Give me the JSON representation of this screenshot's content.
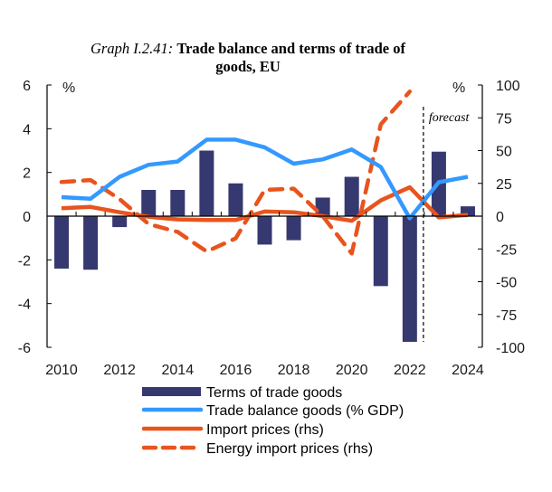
{
  "title": {
    "prefix": "Graph I.2.41:",
    "main_line1": "Trade balance and terms of trade of",
    "main_line2": "goods, EU"
  },
  "colors": {
    "terms_of_trade": "#363870",
    "trade_balance": "#3399FF",
    "import_prices": "#E8541E",
    "energy_import_prices": "#E8541E",
    "axis": "#000000"
  },
  "chart_data": {
    "type": "bar",
    "title": "Graph I.2.41: Trade balance and terms of trade of goods, EU",
    "categories": [
      2010,
      2011,
      2012,
      2013,
      2014,
      2015,
      2016,
      2017,
      2018,
      2019,
      2020,
      2021,
      2022,
      2023,
      2024
    ],
    "x_tick_labels": [
      "2010",
      "2012",
      "2014",
      "2016",
      "2018",
      "2020",
      "2022",
      "2024"
    ],
    "left_axis": {
      "label": "%",
      "ylim": [
        -6,
        6
      ],
      "ticks": [
        6,
        4,
        2,
        0,
        -2,
        -4,
        -6
      ]
    },
    "right_axis": {
      "label": "%",
      "ylim": [
        -100,
        100
      ],
      "ticks": [
        100,
        75,
        50,
        25,
        0,
        -25,
        -50,
        -75,
        -100
      ]
    },
    "series": [
      {
        "name": "Terms of trade goods",
        "type": "bar",
        "axis": "left",
        "values": [
          -2.4,
          -2.45,
          -0.5,
          1.2,
          1.2,
          3.0,
          1.5,
          -1.3,
          -1.1,
          0.85,
          1.8,
          -3.2,
          -5.75,
          2.95,
          0.45
        ]
      },
      {
        "name": "Trade balance goods (% GDP)",
        "type": "line",
        "axis": "left",
        "values": [
          0.87,
          0.8,
          1.8,
          2.35,
          2.5,
          3.5,
          3.5,
          3.15,
          2.4,
          2.6,
          3.05,
          2.25,
          -0.1,
          1.55,
          1.8
        ]
      },
      {
        "name": "Import prices (rhs)",
        "type": "line",
        "axis": "right",
        "values": [
          6,
          7,
          3,
          -0.5,
          -2.5,
          -3,
          -3,
          3.5,
          3,
          0,
          -3.5,
          12,
          22,
          -1,
          1
        ]
      },
      {
        "name": "Energy import prices (rhs)",
        "type": "line",
        "style": "dashed",
        "axis": "right",
        "values": [
          26,
          27.5,
          13,
          -6,
          -12,
          -27,
          -17,
          20,
          21,
          0,
          -28.5,
          70,
          95,
          null,
          null
        ]
      }
    ],
    "annotations": [
      {
        "text": "forecast",
        "after_category": 2022
      }
    ],
    "legend": {
      "placement": "bottom",
      "entries": [
        "Terms of trade goods",
        "Trade balance goods (% GDP)",
        "Import prices (rhs)",
        "Energy import prices (rhs)"
      ]
    },
    "grid": false
  }
}
